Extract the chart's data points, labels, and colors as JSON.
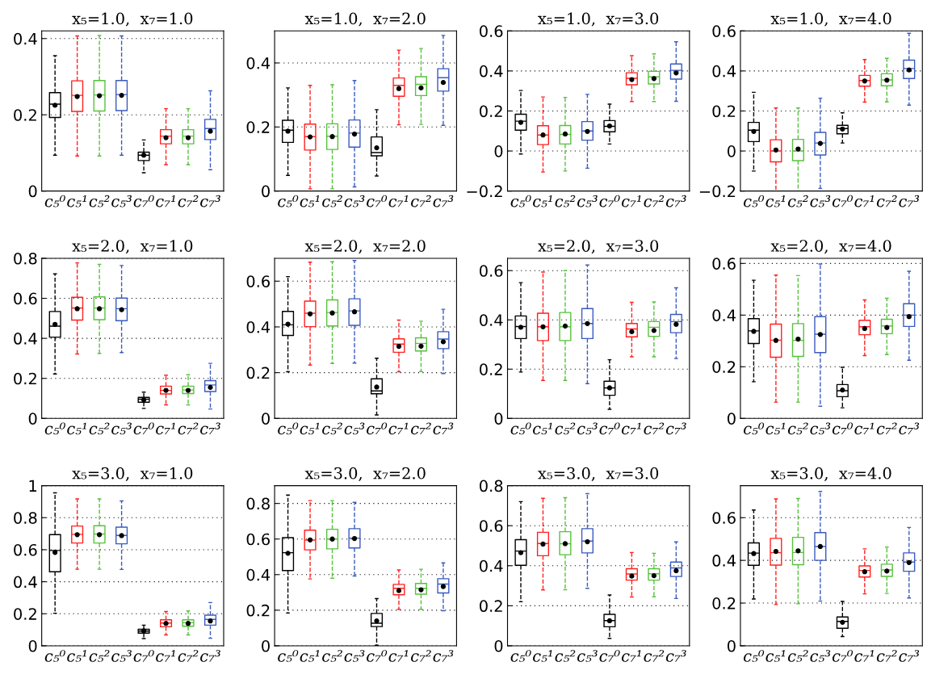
{
  "chart_data": [
    {
      "type": "box",
      "title": "x₅=1.0,  x₇=1.0",
      "categories": [
        "c₅⁰",
        "c₅¹",
        "c₅²",
        "c₅³",
        "c₇⁰",
        "c₇¹",
        "c₇²",
        "c₇³"
      ],
      "colors": [
        "#000000",
        "#ff2020",
        "#55c23b",
        "#3a5bbf",
        "#000000",
        "#ff2020",
        "#55c23b",
        "#3a5bbf"
      ],
      "ylim": [
        0,
        0.42
      ],
      "yticks": [
        0,
        0.2,
        0.4
      ],
      "grid": "y",
      "line_style": "dashed",
      "boxes": [
        {
          "low": 0.094,
          "q1": 0.193,
          "median": 0.228,
          "q3": 0.258,
          "high": 0.355,
          "mean": 0.225
        },
        {
          "low": 0.092,
          "q1": 0.209,
          "median": 0.251,
          "q3": 0.289,
          "high": 0.407,
          "mean": 0.248
        },
        {
          "low": 0.092,
          "q1": 0.21,
          "median": 0.252,
          "q3": 0.29,
          "high": 0.408,
          "mean": 0.25
        },
        {
          "low": 0.094,
          "q1": 0.211,
          "median": 0.253,
          "q3": 0.29,
          "high": 0.407,
          "mean": 0.251
        },
        {
          "low": 0.048,
          "q1": 0.08,
          "median": 0.094,
          "q3": 0.102,
          "high": 0.134,
          "mean": 0.094
        },
        {
          "low": 0.069,
          "q1": 0.124,
          "median": 0.144,
          "q3": 0.161,
          "high": 0.216,
          "mean": 0.14
        },
        {
          "low": 0.069,
          "q1": 0.124,
          "median": 0.144,
          "q3": 0.161,
          "high": 0.216,
          "mean": 0.14
        },
        {
          "low": 0.056,
          "q1": 0.135,
          "median": 0.164,
          "q3": 0.188,
          "high": 0.263,
          "mean": 0.157
        }
      ]
    },
    {
      "type": "box",
      "title": "x₅=1.0,  x₇=2.0",
      "categories": [
        "c₅⁰",
        "c₅¹",
        "c₅²",
        "c₅³",
        "c₇⁰",
        "c₇¹",
        "c₇²",
        "c₇³"
      ],
      "colors": [
        "#000000",
        "#ff2020",
        "#55c23b",
        "#3a5bbf",
        "#000000",
        "#ff2020",
        "#55c23b",
        "#3a5bbf"
      ],
      "ylim": [
        0,
        0.5
      ],
      "yticks": [
        0,
        0.2,
        0.4
      ],
      "grid": "y",
      "line_style": "dashed",
      "boxes": [
        {
          "low": 0.049,
          "q1": 0.152,
          "median": 0.19,
          "q3": 0.221,
          "high": 0.322,
          "mean": 0.187
        },
        {
          "low": 0.007,
          "q1": 0.128,
          "median": 0.17,
          "q3": 0.209,
          "high": 0.33,
          "mean": 0.169
        },
        {
          "low": 0.007,
          "q1": 0.13,
          "median": 0.171,
          "q3": 0.21,
          "high": 0.332,
          "mean": 0.17
        },
        {
          "low": 0.013,
          "q1": 0.137,
          "median": 0.181,
          "q3": 0.222,
          "high": 0.345,
          "mean": 0.178
        },
        {
          "low": 0.047,
          "q1": 0.11,
          "median": 0.12,
          "q3": 0.169,
          "high": 0.254,
          "mean": 0.135
        },
        {
          "low": 0.207,
          "q1": 0.296,
          "median": 0.33,
          "q3": 0.353,
          "high": 0.44,
          "mean": 0.32
        },
        {
          "low": 0.208,
          "q1": 0.298,
          "median": 0.333,
          "q3": 0.357,
          "high": 0.445,
          "mean": 0.322
        },
        {
          "low": 0.205,
          "q1": 0.312,
          "median": 0.354,
          "q3": 0.382,
          "high": 0.486,
          "mean": 0.339
        }
      ]
    },
    {
      "type": "box",
      "title": "x₅=1.0,  x₇=3.0",
      "categories": [
        "c₅⁰",
        "c₅¹",
        "c₅²",
        "c₅³",
        "c₇⁰",
        "c₇¹",
        "c₇²",
        "c₇³"
      ],
      "colors": [
        "#000000",
        "#ff2020",
        "#55c23b",
        "#3a5bbf",
        "#000000",
        "#ff2020",
        "#55c23b",
        "#3a5bbf"
      ],
      "ylim": [
        -0.2,
        0.6
      ],
      "yticks": [
        {
          "value": -0.2,
          "label": "−0.2"
        },
        0,
        0.2,
        0.4,
        0.6
      ],
      "grid": "y",
      "line_style": "dashed",
      "boxes": [
        {
          "low": -0.015,
          "q1": 0.104,
          "median": 0.149,
          "q3": 0.184,
          "high": 0.302,
          "mean": 0.143
        },
        {
          "low": -0.105,
          "q1": 0.032,
          "median": 0.08,
          "q3": 0.126,
          "high": 0.27,
          "mean": 0.08
        },
        {
          "low": -0.1,
          "q1": 0.035,
          "median": 0.083,
          "q3": 0.127,
          "high": 0.268,
          "mean": 0.085
        },
        {
          "low": -0.086,
          "q1": 0.054,
          "median": 0.1,
          "q3": 0.147,
          "high": 0.283,
          "mean": 0.098
        },
        {
          "low": 0.035,
          "q1": 0.096,
          "median": 0.123,
          "q3": 0.152,
          "high": 0.234,
          "mean": 0.125
        },
        {
          "low": 0.247,
          "q1": 0.331,
          "median": 0.363,
          "q3": 0.391,
          "high": 0.476,
          "mean": 0.357
        },
        {
          "low": 0.247,
          "q1": 0.335,
          "median": 0.37,
          "q3": 0.398,
          "high": 0.485,
          "mean": 0.362
        },
        {
          "low": 0.248,
          "q1": 0.359,
          "median": 0.403,
          "q3": 0.435,
          "high": 0.546,
          "mean": 0.39
        }
      ]
    },
    {
      "type": "box",
      "title": "x₅=1.0,  x₇=4.0",
      "categories": [
        "c₅⁰",
        "c₅¹",
        "c₅²",
        "c₅³",
        "c₇⁰",
        "c₇¹",
        "c₇²",
        "c₇³"
      ],
      "colors": [
        "#000000",
        "#ff2020",
        "#55c23b",
        "#3a5bbf",
        "#000000",
        "#ff2020",
        "#55c23b",
        "#3a5bbf"
      ],
      "ylim": [
        -0.2,
        0.6
      ],
      "yticks": [
        {
          "value": -0.2,
          "label": "−0.2"
        },
        0,
        0.2,
        0.4,
        0.6
      ],
      "grid": "y",
      "line_style": "dashed",
      "boxes": [
        {
          "low": -0.1,
          "q1": 0.047,
          "median": 0.104,
          "q3": 0.143,
          "high": 0.293,
          "mean": 0.098
        },
        {
          "low": -0.2,
          "q1": -0.054,
          "median": 0.0,
          "q3": 0.056,
          "high": 0.215,
          "mean": 0.005
        },
        {
          "low": -0.2,
          "q1": -0.048,
          "median": 0.0,
          "q3": 0.058,
          "high": 0.215,
          "mean": 0.01
        },
        {
          "low": -0.187,
          "q1": -0.02,
          "median": 0.04,
          "q3": 0.093,
          "high": 0.264,
          "mean": 0.038
        },
        {
          "low": 0.04,
          "q1": 0.086,
          "median": 0.112,
          "q3": 0.128,
          "high": 0.191,
          "mean": 0.11
        },
        {
          "low": 0.244,
          "q1": 0.324,
          "median": 0.352,
          "q3": 0.378,
          "high": 0.457,
          "mean": 0.35
        },
        {
          "low": 0.245,
          "q1": 0.326,
          "median": 0.355,
          "q3": 0.386,
          "high": 0.463,
          "mean": 0.354
        },
        {
          "low": 0.229,
          "q1": 0.362,
          "median": 0.412,
          "q3": 0.454,
          "high": 0.588,
          "mean": 0.405
        }
      ]
    },
    {
      "type": "box",
      "title": "x₅=2.0,  x₇=1.0",
      "categories": [
        "c₅⁰",
        "c₅¹",
        "c₅²",
        "c₅³",
        "c₇⁰",
        "c₇¹",
        "c₇²",
        "c₇³"
      ],
      "colors": [
        "#000000",
        "#ff2020",
        "#55c23b",
        "#3a5bbf",
        "#000000",
        "#ff2020",
        "#55c23b",
        "#3a5bbf"
      ],
      "ylim": [
        0,
        0.8
      ],
      "yticks": [
        0,
        0.2,
        0.4,
        0.6,
        0.8
      ],
      "grid": "y",
      "line_style": "dashed",
      "boxes": [
        {
          "low": 0.222,
          "q1": 0.406,
          "median": 0.461,
          "q3": 0.534,
          "high": 0.722,
          "mean": 0.47
        },
        {
          "low": 0.322,
          "q1": 0.491,
          "median": 0.552,
          "q3": 0.605,
          "high": 0.777,
          "mean": 0.548
        },
        {
          "low": 0.325,
          "q1": 0.493,
          "median": 0.552,
          "q3": 0.607,
          "high": 0.77,
          "mean": 0.548
        },
        {
          "low": 0.329,
          "q1": 0.488,
          "median": 0.548,
          "q3": 0.601,
          "high": 0.764,
          "mean": 0.543
        },
        {
          "low": 0.05,
          "q1": 0.081,
          "median": 0.096,
          "q3": 0.105,
          "high": 0.131,
          "mean": 0.093
        },
        {
          "low": 0.068,
          "q1": 0.122,
          "median": 0.14,
          "q3": 0.161,
          "high": 0.216,
          "mean": 0.14
        },
        {
          "low": 0.068,
          "q1": 0.124,
          "median": 0.142,
          "q3": 0.161,
          "high": 0.218,
          "mean": 0.14
        },
        {
          "low": 0.047,
          "q1": 0.134,
          "median": 0.167,
          "q3": 0.189,
          "high": 0.275,
          "mean": 0.155
        }
      ]
    },
    {
      "type": "box",
      "title": "x₅=2.0,  x₇=2.0",
      "categories": [
        "c₅⁰",
        "c₅¹",
        "c₅²",
        "c₅³",
        "c₇⁰",
        "c₇¹",
        "c₇²",
        "c₇³"
      ],
      "colors": [
        "#000000",
        "#ff2020",
        "#55c23b",
        "#3a5bbf",
        "#000000",
        "#ff2020",
        "#55c23b",
        "#3a5bbf"
      ],
      "ylim": [
        0,
        0.7
      ],
      "yticks": [
        0,
        0.2,
        0.4,
        0.6
      ],
      "grid": "y",
      "line_style": "dashed",
      "boxes": [
        {
          "low": 0.204,
          "q1": 0.363,
          "median": 0.409,
          "q3": 0.468,
          "high": 0.62,
          "mean": 0.412
        },
        {
          "low": 0.233,
          "q1": 0.401,
          "median": 0.46,
          "q3": 0.513,
          "high": 0.683,
          "mean": 0.457
        },
        {
          "low": 0.24,
          "q1": 0.404,
          "median": 0.463,
          "q3": 0.518,
          "high": 0.685,
          "mean": 0.461
        },
        {
          "low": 0.242,
          "q1": 0.407,
          "median": 0.47,
          "q3": 0.523,
          "high": 0.69,
          "mean": 0.466
        },
        {
          "low": 0.015,
          "q1": 0.108,
          "median": 0.12,
          "q3": 0.173,
          "high": 0.263,
          "mean": 0.137
        },
        {
          "low": 0.204,
          "q1": 0.289,
          "median": 0.325,
          "q3": 0.348,
          "high": 0.43,
          "mean": 0.315
        },
        {
          "low": 0.205,
          "q1": 0.295,
          "median": 0.328,
          "q3": 0.352,
          "high": 0.425,
          "mean": 0.316
        },
        {
          "low": 0.196,
          "q1": 0.305,
          "median": 0.347,
          "q3": 0.379,
          "high": 0.477,
          "mean": 0.335
        }
      ]
    },
    {
      "type": "box",
      "title": "x₅=2.0,  x₇=3.0",
      "categories": [
        "c₅⁰",
        "c₅¹",
        "c₅²",
        "c₅³",
        "c₇⁰",
        "c₇¹",
        "c₇²",
        "c₇³"
      ],
      "colors": [
        "#000000",
        "#ff2020",
        "#55c23b",
        "#3a5bbf",
        "#000000",
        "#ff2020",
        "#55c23b",
        "#3a5bbf"
      ],
      "ylim": [
        0,
        0.65
      ],
      "yticks": [
        0,
        0.2,
        0.4,
        0.6
      ],
      "grid": "y",
      "line_style": "dashed",
      "boxes": [
        {
          "low": 0.188,
          "q1": 0.324,
          "median": 0.373,
          "q3": 0.416,
          "high": 0.551,
          "mean": 0.37
        },
        {
          "low": 0.154,
          "q1": 0.316,
          "median": 0.372,
          "q3": 0.427,
          "high": 0.594,
          "mean": 0.372
        },
        {
          "low": 0.154,
          "q1": 0.316,
          "median": 0.372,
          "q3": 0.43,
          "high": 0.6,
          "mean": 0.375
        },
        {
          "low": 0.141,
          "q1": 0.324,
          "median": 0.385,
          "q3": 0.446,
          "high": 0.623,
          "mean": 0.385
        },
        {
          "low": 0.037,
          "q1": 0.094,
          "median": 0.124,
          "q3": 0.151,
          "high": 0.238,
          "mean": 0.124
        },
        {
          "low": 0.25,
          "q1": 0.331,
          "median": 0.363,
          "q3": 0.385,
          "high": 0.471,
          "mean": 0.352
        },
        {
          "low": 0.25,
          "q1": 0.333,
          "median": 0.37,
          "q3": 0.393,
          "high": 0.473,
          "mean": 0.357
        },
        {
          "low": 0.243,
          "q1": 0.348,
          "median": 0.393,
          "q3": 0.422,
          "high": 0.53,
          "mean": 0.382
        }
      ]
    },
    {
      "type": "box",
      "title": "x₅=2.0,  x₇=4.0",
      "categories": [
        "c₅⁰",
        "c₅¹",
        "c₅²",
        "c₅³",
        "c₇⁰",
        "c₇¹",
        "c₇²",
        "c₇³"
      ],
      "colors": [
        "#000000",
        "#ff2020",
        "#55c23b",
        "#3a5bbf",
        "#000000",
        "#ff2020",
        "#55c23b",
        "#3a5bbf"
      ],
      "ylim": [
        0,
        0.62
      ],
      "yticks": [
        0,
        0.2,
        0.4,
        0.6
      ],
      "grid": "y",
      "line_style": "dashed",
      "boxes": [
        {
          "low": 0.142,
          "q1": 0.29,
          "median": 0.339,
          "q3": 0.386,
          "high": 0.535,
          "mean": 0.337
        },
        {
          "low": 0.063,
          "q1": 0.237,
          "median": 0.303,
          "q3": 0.365,
          "high": 0.555,
          "mean": 0.302
        },
        {
          "low": 0.063,
          "q1": 0.24,
          "median": 0.302,
          "q3": 0.367,
          "high": 0.553,
          "mean": 0.307
        },
        {
          "low": 0.047,
          "q1": 0.255,
          "median": 0.326,
          "q3": 0.394,
          "high": 0.598,
          "mean": 0.325
        },
        {
          "low": 0.041,
          "q1": 0.084,
          "median": 0.107,
          "q3": 0.131,
          "high": 0.198,
          "mean": 0.11
        },
        {
          "low": 0.243,
          "q1": 0.324,
          "median": 0.355,
          "q3": 0.38,
          "high": 0.459,
          "mean": 0.348
        },
        {
          "low": 0.247,
          "q1": 0.328,
          "median": 0.358,
          "q3": 0.384,
          "high": 0.465,
          "mean": 0.352
        },
        {
          "low": 0.225,
          "q1": 0.356,
          "median": 0.4,
          "q3": 0.444,
          "high": 0.57,
          "mean": 0.394
        }
      ]
    },
    {
      "type": "box",
      "title": "x₅=3.0,  x₇=1.0",
      "categories": [
        "c₅⁰",
        "c₅¹",
        "c₅²",
        "c₅³",
        "c₇⁰",
        "c₇¹",
        "c₇²",
        "c₇³"
      ],
      "colors": [
        "#000000",
        "#ff2020",
        "#55c23b",
        "#3a5bbf",
        "#000000",
        "#ff2020",
        "#55c23b",
        "#3a5bbf"
      ],
      "ylim": [
        0,
        1
      ],
      "yticks": [
        0,
        0.2,
        0.4,
        0.6,
        0.8,
        1
      ],
      "grid": "y",
      "line_style": "dashed",
      "boxes": [
        {
          "low": 0.203,
          "q1": 0.462,
          "median": 0.595,
          "q3": 0.694,
          "high": 0.955,
          "mean": 0.583
        },
        {
          "low": 0.478,
          "q1": 0.642,
          "median": 0.696,
          "q3": 0.748,
          "high": 0.917,
          "mean": 0.694
        },
        {
          "low": 0.478,
          "q1": 0.642,
          "median": 0.698,
          "q3": 0.75,
          "high": 0.917,
          "mean": 0.694
        },
        {
          "low": 0.477,
          "q1": 0.637,
          "median": 0.689,
          "q3": 0.741,
          "high": 0.905,
          "mean": 0.688
        },
        {
          "low": 0.045,
          "q1": 0.079,
          "median": 0.092,
          "q3": 0.103,
          "high": 0.129,
          "mean": 0.093
        },
        {
          "low": 0.068,
          "q1": 0.119,
          "median": 0.142,
          "q3": 0.162,
          "high": 0.214,
          "mean": 0.14
        },
        {
          "low": 0.068,
          "q1": 0.122,
          "median": 0.144,
          "q3": 0.162,
          "high": 0.218,
          "mean": 0.14
        },
        {
          "low": 0.047,
          "q1": 0.129,
          "median": 0.165,
          "q3": 0.191,
          "high": 0.27,
          "mean": 0.155
        }
      ]
    },
    {
      "type": "box",
      "title": "x₅=3.0,  x₇=2.0",
      "categories": [
        "c₅⁰",
        "c₅¹",
        "c₅²",
        "c₅³",
        "c₇⁰",
        "c₇¹",
        "c₇²",
        "c₇³"
      ],
      "colors": [
        "#000000",
        "#ff2020",
        "#55c23b",
        "#3a5bbf",
        "#000000",
        "#ff2020",
        "#55c23b",
        "#3a5bbf"
      ],
      "ylim": [
        0,
        0.9
      ],
      "yticks": [
        0,
        0.2,
        0.4,
        0.6,
        0.8
      ],
      "grid": "y",
      "line_style": "dashed",
      "boxes": [
        {
          "low": 0.184,
          "q1": 0.423,
          "median": 0.523,
          "q3": 0.608,
          "high": 0.847,
          "mean": 0.52
        },
        {
          "low": 0.376,
          "q1": 0.539,
          "median": 0.594,
          "q3": 0.65,
          "high": 0.816,
          "mean": 0.595
        },
        {
          "low": 0.38,
          "q1": 0.545,
          "median": 0.6,
          "q3": 0.655,
          "high": 0.816,
          "mean": 0.6
        },
        {
          "low": 0.392,
          "q1": 0.55,
          "median": 0.605,
          "q3": 0.658,
          "high": 0.806,
          "mean": 0.603
        },
        {
          "low": 0.003,
          "q1": 0.108,
          "median": 0.127,
          "q3": 0.182,
          "high": 0.265,
          "mean": 0.14
        },
        {
          "low": 0.205,
          "q1": 0.287,
          "median": 0.323,
          "q3": 0.345,
          "high": 0.426,
          "mean": 0.31
        },
        {
          "low": 0.205,
          "q1": 0.29,
          "median": 0.323,
          "q3": 0.35,
          "high": 0.43,
          "mean": 0.315
        },
        {
          "low": 0.197,
          "q1": 0.297,
          "median": 0.347,
          "q3": 0.377,
          "high": 0.466,
          "mean": 0.333
        }
      ]
    },
    {
      "type": "box",
      "title": "x₅=3.0,  x₇=3.0",
      "categories": [
        "c₅⁰",
        "c₅¹",
        "c₅²",
        "c₅³",
        "c₇⁰",
        "c₇¹",
        "c₇²",
        "c₇³"
      ],
      "colors": [
        "#000000",
        "#ff2020",
        "#55c23b",
        "#3a5bbf",
        "#000000",
        "#ff2020",
        "#55c23b",
        "#3a5bbf"
      ],
      "ylim": [
        0,
        0.8
      ],
      "yticks": [
        0,
        0.2,
        0.4,
        0.6,
        0.8
      ],
      "grid": "y",
      "line_style": "dashed",
      "boxes": [
        {
          "low": 0.22,
          "q1": 0.402,
          "median": 0.473,
          "q3": 0.53,
          "high": 0.72,
          "mean": 0.465
        },
        {
          "low": 0.279,
          "q1": 0.45,
          "median": 0.511,
          "q3": 0.567,
          "high": 0.737,
          "mean": 0.508
        },
        {
          "low": 0.28,
          "q1": 0.455,
          "median": 0.51,
          "q3": 0.57,
          "high": 0.74,
          "mean": 0.51
        },
        {
          "low": 0.287,
          "q1": 0.464,
          "median": 0.523,
          "q3": 0.585,
          "high": 0.76,
          "mean": 0.52
        },
        {
          "low": 0.037,
          "q1": 0.095,
          "median": 0.126,
          "q3": 0.157,
          "high": 0.254,
          "mean": 0.125
        },
        {
          "low": 0.244,
          "q1": 0.328,
          "median": 0.359,
          "q3": 0.385,
          "high": 0.466,
          "mean": 0.348
        },
        {
          "low": 0.245,
          "q1": 0.328,
          "median": 0.36,
          "q3": 0.385,
          "high": 0.462,
          "mean": 0.35
        },
        {
          "low": 0.236,
          "q1": 0.346,
          "median": 0.389,
          "q3": 0.418,
          "high": 0.519,
          "mean": 0.375
        }
      ]
    },
    {
      "type": "box",
      "title": "x₅=3.0,  x₇=4.0",
      "categories": [
        "c₅⁰",
        "c₅¹",
        "c₅²",
        "c₅³",
        "c₇⁰",
        "c₇¹",
        "c₇²",
        "c₇³"
      ],
      "colors": [
        "#000000",
        "#ff2020",
        "#55c23b",
        "#3a5bbf",
        "#000000",
        "#ff2020",
        "#55c23b",
        "#3a5bbf"
      ],
      "ylim": [
        0,
        0.75
      ],
      "yticks": [
        0,
        0.2,
        0.4,
        0.6
      ],
      "grid": "y",
      "line_style": "dashed",
      "boxes": [
        {
          "low": 0.219,
          "q1": 0.377,
          "median": 0.434,
          "q3": 0.482,
          "high": 0.636,
          "mean": 0.432
        },
        {
          "low": 0.193,
          "q1": 0.378,
          "median": 0.436,
          "q3": 0.503,
          "high": 0.688,
          "mean": 0.442
        },
        {
          "low": 0.197,
          "q1": 0.38,
          "median": 0.437,
          "q3": 0.508,
          "high": 0.69,
          "mean": 0.445
        },
        {
          "low": 0.209,
          "q1": 0.4,
          "median": 0.465,
          "q3": 0.53,
          "high": 0.723,
          "mean": 0.465
        },
        {
          "low": 0.043,
          "q1": 0.082,
          "median": 0.114,
          "q3": 0.135,
          "high": 0.208,
          "mean": 0.11
        },
        {
          "low": 0.243,
          "q1": 0.322,
          "median": 0.353,
          "q3": 0.374,
          "high": 0.454,
          "mean": 0.347
        },
        {
          "low": 0.245,
          "q1": 0.325,
          "median": 0.355,
          "q3": 0.382,
          "high": 0.462,
          "mean": 0.35
        },
        {
          "low": 0.224,
          "q1": 0.349,
          "median": 0.392,
          "q3": 0.435,
          "high": 0.554,
          "mean": 0.39
        }
      ]
    }
  ]
}
